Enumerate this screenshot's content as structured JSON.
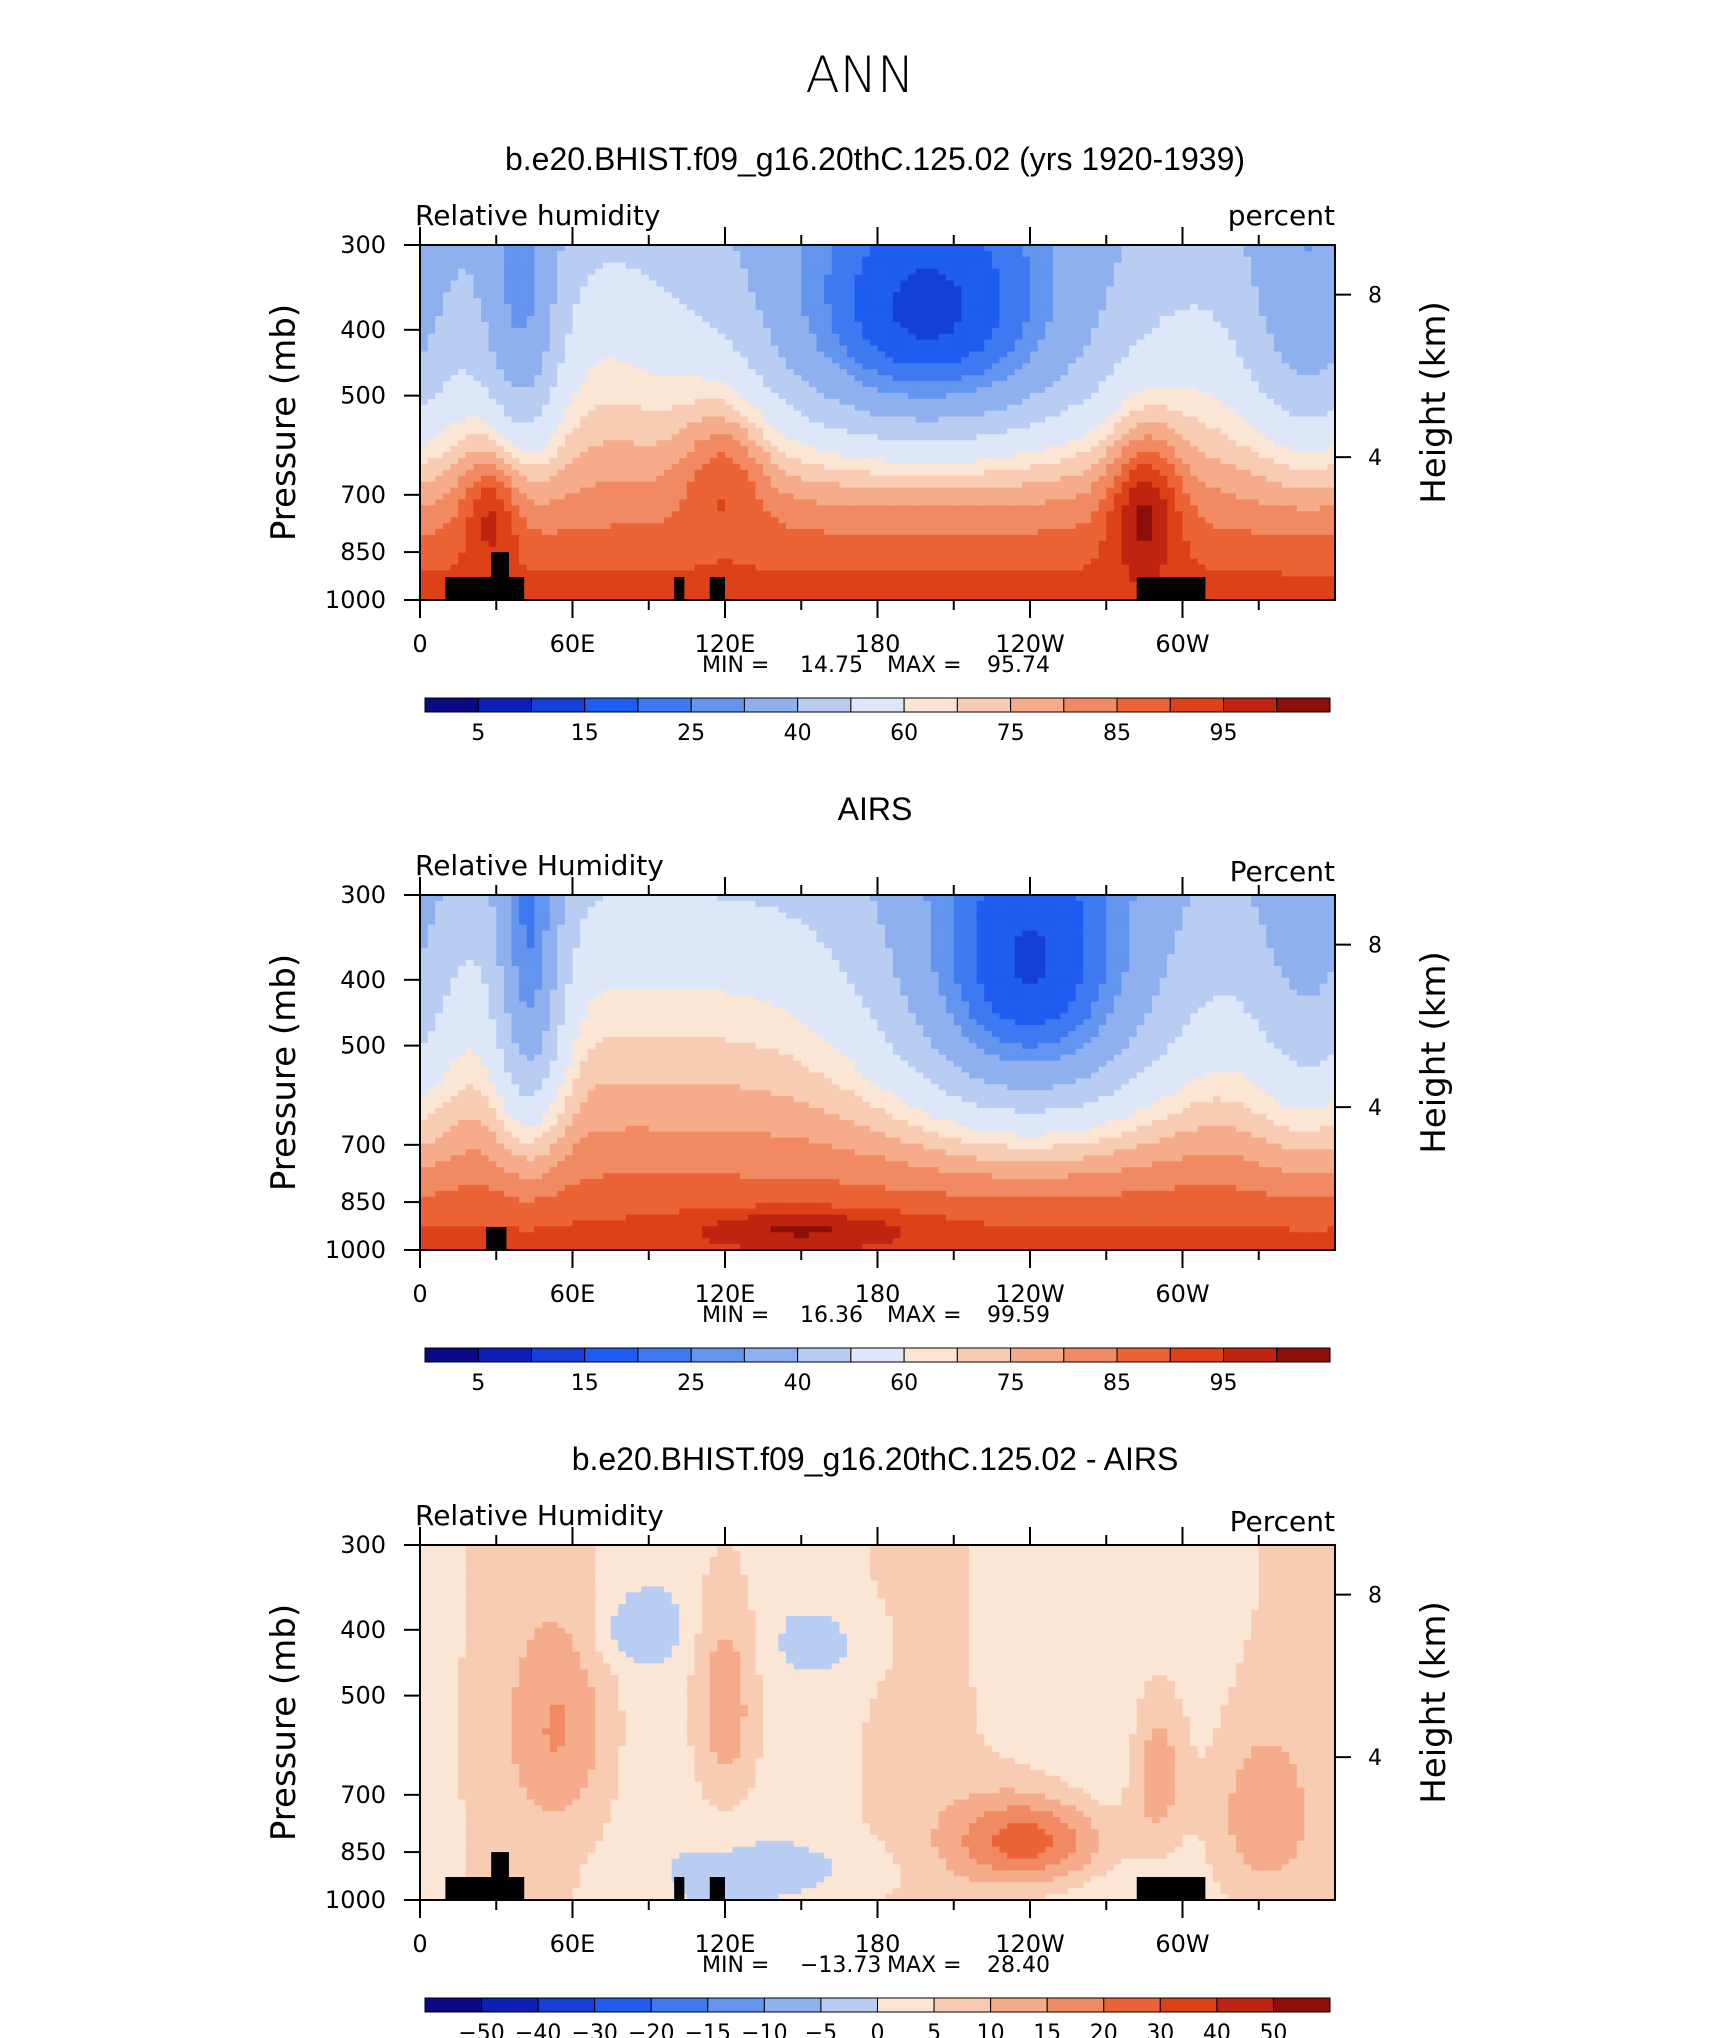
{
  "page": {
    "super_title": "ANN"
  },
  "colors": {
    "abs_palette": [
      "#0a0a85",
      "#0d1fb5",
      "#1440d8",
      "#1f5df0",
      "#3d7af2",
      "#6395ef",
      "#8fb0ee",
      "#b9cdf2",
      "#dde7f7",
      "#fbe5d5",
      "#f8ccb3",
      "#f6ac8a",
      "#f18a62",
      "#ec6436",
      "#dd4118",
      "#bf2410",
      "#8c0f0a"
    ],
    "diff_palette": [
      "#0a0a85",
      "#0d1fb5",
      "#1440d8",
      "#1f5df0",
      "#3d7af2",
      "#6395ef",
      "#8fb0ee",
      "#b9cdf2",
      "#dde7f7",
      "#fbe5d5",
      "#f8ccb3",
      "#f6ac8a",
      "#f18a62",
      "#ec6436",
      "#dd4118",
      "#bf2410",
      "#8c0f0a"
    ],
    "terrain": "#000000"
  },
  "chart_data": [
    {
      "type": "heatmap",
      "title": "b.e20.BHIST.f09_g16.20thC.125.02 (yrs 1920-1939)",
      "left_label": "Relative humidity",
      "right_label": "percent",
      "ylabel": "Pressure (mb)",
      "y2label": "Height (km)",
      "x_ticks": [
        "0",
        "60E",
        "120E",
        "180",
        "120W",
        "60W"
      ],
      "y_ticks": [
        "300",
        "400",
        "500",
        "700",
        "850",
        "1000"
      ],
      "y2_ticks": [
        "8",
        "4"
      ],
      "stats": {
        "min_label": "MIN =",
        "min": "14.75",
        "max_label": "MAX =",
        "max": "95.74"
      },
      "colorbar_labels": [
        "5",
        "15",
        "25",
        "40",
        "60",
        "75",
        "85",
        "95"
      ],
      "levels": [
        5,
        10,
        15,
        20,
        25,
        30,
        40,
        50,
        60,
        65,
        70,
        75,
        80,
        85,
        90,
        95
      ],
      "ylim": [
        1000,
        300
      ],
      "features": [
        {
          "lon": 200,
          "p": 410,
          "val": -45,
          "wlon": 50,
          "wp": 140
        },
        {
          "lon": 40,
          "p": 410,
          "val": -28,
          "wlon": 12,
          "wp": 160
        },
        {
          "lon": 350,
          "p": 410,
          "val": -25,
          "wlon": 20,
          "wp": 160
        },
        {
          "lon": 120,
          "p": 620,
          "val": 12,
          "wlon": 12,
          "wp": 120
        },
        {
          "lon": 28,
          "p": 720,
          "val": 14,
          "wlon": 8,
          "wp": 110
        },
        {
          "lon": 285,
          "p": 720,
          "val": 18,
          "wlon": 10,
          "wp": 130
        }
      ],
      "terrain": [
        {
          "lon0": 10,
          "lon1": 41,
          "p": 925
        },
        {
          "lon0": 28,
          "lon1": 35,
          "p": 850
        },
        {
          "lon0": 100,
          "lon1": 104,
          "p": 925
        },
        {
          "lon0": 114,
          "lon1": 120,
          "p": 925
        },
        {
          "lon0": 282,
          "lon1": 309,
          "p": 925
        }
      ]
    },
    {
      "type": "heatmap",
      "title": "AIRS",
      "left_label": "Relative Humidity",
      "right_label": "Percent",
      "ylabel": "Pressure (mb)",
      "y2label": "Height (km)",
      "x_ticks": [
        "0",
        "60E",
        "120E",
        "180",
        "120W",
        "60W"
      ],
      "y_ticks": [
        "300",
        "400",
        "500",
        "700",
        "850",
        "1000"
      ],
      "y2_ticks": [
        "8",
        "4"
      ],
      "stats": {
        "min_label": "MIN =",
        "min": "16.36",
        "max_label": "MAX =",
        "max": "99.59"
      },
      "colorbar_labels": [
        "5",
        "15",
        "25",
        "40",
        "60",
        "75",
        "85",
        "95"
      ],
      "levels": [
        5,
        10,
        15,
        20,
        25,
        30,
        40,
        50,
        60,
        65,
        70,
        75,
        80,
        85,
        90,
        95
      ],
      "ylim": [
        1000,
        300
      ],
      "features": [
        {
          "lon": 240,
          "p": 430,
          "val": -45,
          "wlon": 40,
          "wp": 170
        },
        {
          "lon": 43,
          "p": 420,
          "val": -32,
          "wlon": 10,
          "wp": 190
        },
        {
          "lon": 350,
          "p": 430,
          "val": -20,
          "wlon": 18,
          "wp": 200
        },
        {
          "lon": 150,
          "p": 930,
          "val": 10,
          "wlon": 30,
          "wp": 40
        }
      ],
      "terrain": [
        {
          "lon0": 26,
          "lon1": 34,
          "p": 925
        }
      ]
    },
    {
      "type": "heatmap",
      "title": "b.e20.BHIST.f09_g16.20thC.125.02 - AIRS",
      "left_label": "Relative Humidity",
      "right_label": "Percent",
      "ylabel": "Pressure (mb)",
      "y2label": "Height (km)",
      "x_ticks": [
        "0",
        "60E",
        "120E",
        "180",
        "120W",
        "60W"
      ],
      "y_ticks": [
        "300",
        "400",
        "500",
        "700",
        "850",
        "1000"
      ],
      "y2_ticks": [
        "8",
        "4"
      ],
      "stats": {
        "min_label": "MIN =",
        "min": "−13.73",
        "max_label": "MAX =",
        "max": "28.40"
      },
      "colorbar_labels": [
        "−50",
        "−40",
        "−30",
        "−20",
        "−15",
        "−10",
        "−5",
        "0",
        "5",
        "10",
        "15",
        "20",
        "30",
        "40",
        "50"
      ],
      "levels": [
        -50,
        -40,
        -30,
        -20,
        -15,
        -10,
        -5,
        0,
        5,
        10,
        15,
        20,
        30,
        40,
        50
      ],
      "ylim": [
        1000,
        300
      ],
      "features": [
        {
          "lon": 240,
          "p": 820,
          "val": 20,
          "wlon": 22,
          "wp": 90
        },
        {
          "lon": 120,
          "p": 520,
          "val": 13,
          "wlon": 10,
          "wp": 160
        },
        {
          "lon": 55,
          "p": 560,
          "val": 10,
          "wlon": 14,
          "wp": 140
        },
        {
          "lon": 290,
          "p": 650,
          "val": 12,
          "wlon": 8,
          "wp": 130
        },
        {
          "lon": 330,
          "p": 750,
          "val": 9,
          "wlon": 14,
          "wp": 150
        },
        {
          "lon": 160,
          "p": 420,
          "val": -5,
          "wlon": 14,
          "wp": 40
        },
        {
          "lon": 85,
          "p": 400,
          "val": -7,
          "wlon": 12,
          "wp": 35
        },
        {
          "lon": 150,
          "p": 900,
          "val": -4,
          "wlon": 30,
          "wp": 60
        }
      ],
      "terrain": [
        {
          "lon0": 10,
          "lon1": 41,
          "p": 925
        },
        {
          "lon0": 28,
          "lon1": 35,
          "p": 850
        },
        {
          "lon0": 100,
          "lon1": 104,
          "p": 925
        },
        {
          "lon0": 114,
          "lon1": 120,
          "p": 925
        },
        {
          "lon0": 282,
          "lon1": 309,
          "p": 925
        }
      ]
    }
  ]
}
